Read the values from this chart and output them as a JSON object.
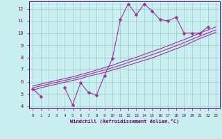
{
  "title": "",
  "xlabel": "Windchill (Refroidissement éolien,°C)",
  "ylabel": "",
  "bg_color": "#c8eef0",
  "line_color": "#993399",
  "grid_color": "#a0c8cc",
  "axis_color": "#660066",
  "x_data": [
    0,
    1,
    2,
    3,
    4,
    5,
    6,
    7,
    8,
    9,
    10,
    11,
    12,
    13,
    14,
    15,
    16,
    17,
    18,
    19,
    20,
    21,
    22,
    23
  ],
  "y_scatter": [
    5.4,
    4.8,
    null,
    null,
    5.5,
    4.1,
    5.9,
    5.1,
    4.9,
    6.5,
    7.9,
    11.1,
    12.4,
    11.5,
    12.4,
    11.8,
    11.1,
    11.0,
    11.3,
    10.0,
    10.0,
    10.0,
    10.5,
    null
  ],
  "y_line1": [
    5.3,
    5.5,
    5.65,
    5.8,
    5.95,
    6.1,
    6.25,
    6.45,
    6.6,
    6.75,
    6.95,
    7.15,
    7.35,
    7.55,
    7.75,
    7.95,
    8.2,
    8.45,
    8.7,
    8.95,
    9.25,
    9.55,
    9.8,
    10.05
  ],
  "y_line2": [
    5.5,
    5.65,
    5.8,
    5.95,
    6.1,
    6.25,
    6.42,
    6.6,
    6.78,
    6.95,
    7.15,
    7.35,
    7.58,
    7.8,
    8.0,
    8.22,
    8.45,
    8.7,
    8.95,
    9.2,
    9.48,
    9.75,
    10.0,
    10.25
  ],
  "y_line3": [
    5.65,
    5.8,
    5.95,
    6.1,
    6.25,
    6.4,
    6.58,
    6.75,
    6.95,
    7.15,
    7.35,
    7.58,
    7.8,
    8.0,
    8.25,
    8.48,
    8.7,
    8.95,
    9.2,
    9.45,
    9.72,
    10.0,
    10.25,
    10.5
  ],
  "ylim": [
    3.8,
    12.6
  ],
  "xlim": [
    -0.5,
    23.5
  ],
  "yticks": [
    4,
    5,
    6,
    7,
    8,
    9,
    10,
    11,
    12
  ],
  "xticks": [
    0,
    1,
    2,
    3,
    4,
    5,
    6,
    7,
    8,
    9,
    10,
    11,
    12,
    13,
    14,
    15,
    16,
    17,
    18,
    19,
    20,
    21,
    22,
    23
  ],
  "markersize": 2.5,
  "linewidth": 0.8
}
